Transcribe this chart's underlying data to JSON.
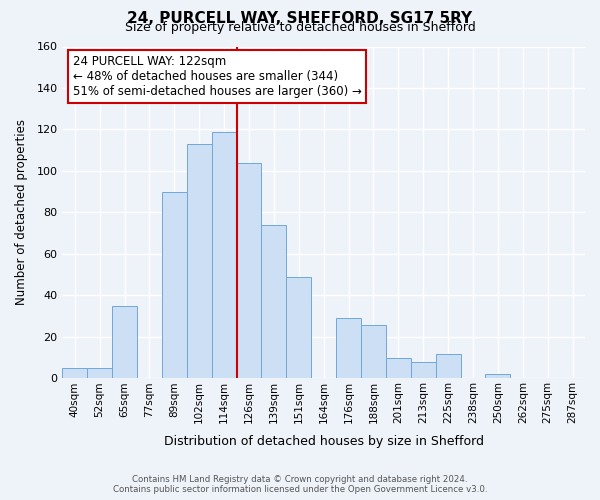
{
  "title": "24, PURCELL WAY, SHEFFORD, SG17 5RY",
  "subtitle": "Size of property relative to detached houses in Shefford",
  "xlabel": "Distribution of detached houses by size in Shefford",
  "ylabel": "Number of detached properties",
  "bar_labels": [
    "40sqm",
    "52sqm",
    "65sqm",
    "77sqm",
    "89sqm",
    "102sqm",
    "114sqm",
    "126sqm",
    "139sqm",
    "151sqm",
    "164sqm",
    "176sqm",
    "188sqm",
    "201sqm",
    "213sqm",
    "225sqm",
    "238sqm",
    "250sqm",
    "262sqm",
    "275sqm",
    "287sqm"
  ],
  "bar_values": [
    5,
    5,
    35,
    0,
    90,
    113,
    119,
    104,
    74,
    49,
    0,
    29,
    26,
    10,
    8,
    12,
    0,
    2,
    0,
    0,
    0
  ],
  "bar_color": "#ccdff5",
  "bar_edge_color": "#6fa8d8",
  "vline_color": "#cc0000",
  "annotation_title": "24 PURCELL WAY: 122sqm",
  "annotation_line1": "← 48% of detached houses are smaller (344)",
  "annotation_line2": "51% of semi-detached houses are larger (360) →",
  "annotation_box_color": "#ffffff",
  "annotation_box_edge": "#cc0000",
  "ylim": [
    0,
    160
  ],
  "yticks": [
    0,
    20,
    40,
    60,
    80,
    100,
    120,
    140,
    160
  ],
  "footer_line1": "Contains HM Land Registry data © Crown copyright and database right 2024.",
  "footer_line2": "Contains public sector information licensed under the Open Government Licence v3.0.",
  "bg_color": "#eef2f9",
  "grid_color": "#ffffff"
}
